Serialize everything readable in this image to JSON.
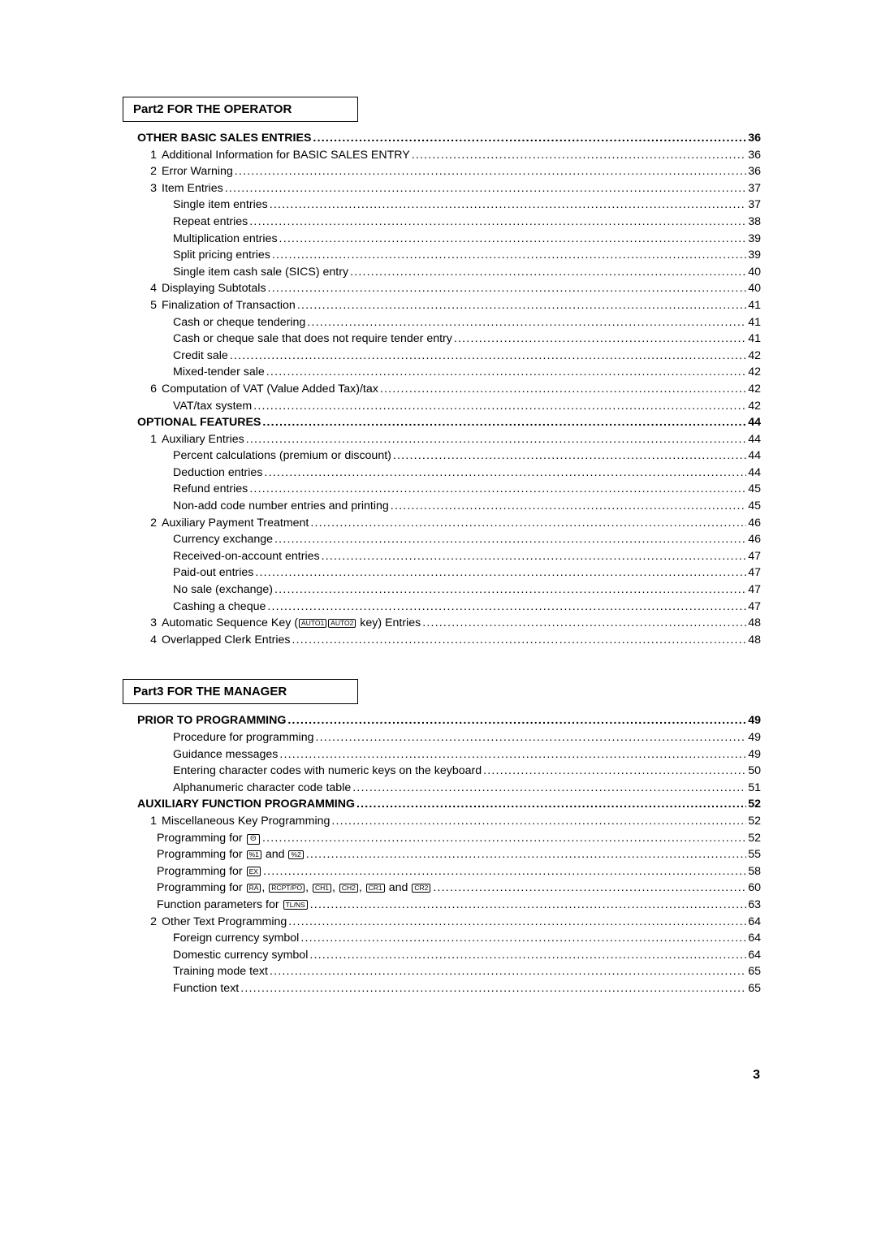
{
  "pageNumber": "3",
  "parts": [
    {
      "header": "Part2  FOR THE OPERATOR",
      "lines": [
        {
          "cls": "l0 bold",
          "num": "",
          "label": "OTHER BASIC SALES ENTRIES",
          "page": "36"
        },
        {
          "cls": "l1",
          "num": "1",
          "label": "Additional Information for BASIC SALES ENTRY",
          "page": "36"
        },
        {
          "cls": "l1",
          "num": "2",
          "label": "Error Warning",
          "page": "36"
        },
        {
          "cls": "l1",
          "num": "3",
          "label": "Item Entries",
          "page": "37"
        },
        {
          "cls": "l2",
          "num": "",
          "label": "Single item entries",
          "page": "37"
        },
        {
          "cls": "l2",
          "num": "",
          "label": "Repeat entries",
          "page": "38"
        },
        {
          "cls": "l2",
          "num": "",
          "label": "Multiplication entries",
          "page": "39"
        },
        {
          "cls": "l2",
          "num": "",
          "label": "Split pricing entries",
          "page": "39"
        },
        {
          "cls": "l2",
          "num": "",
          "label": "Single item cash sale (SICS) entry",
          "page": "40"
        },
        {
          "cls": "l1",
          "num": "4",
          "label": "Displaying Subtotals",
          "page": "40"
        },
        {
          "cls": "l1",
          "num": "5",
          "label": "Finalization of Transaction",
          "page": "41"
        },
        {
          "cls": "l2",
          "num": "",
          "label": "Cash or cheque tendering",
          "page": "41"
        },
        {
          "cls": "l2",
          "num": "",
          "label": "Cash or cheque sale that does not require tender entry",
          "page": "41"
        },
        {
          "cls": "l2",
          "num": "",
          "label": "Credit sale",
          "page": "42"
        },
        {
          "cls": "l2",
          "num": "",
          "label": "Mixed-tender sale",
          "page": "42"
        },
        {
          "cls": "l1",
          "num": "6",
          "label": "Computation of VAT (Value Added Tax)/tax",
          "page": "42"
        },
        {
          "cls": "l2",
          "num": "",
          "label": "VAT/tax system",
          "page": "42"
        },
        {
          "cls": "l0 bold",
          "num": "",
          "label": "OPTIONAL FEATURES",
          "page": "44"
        },
        {
          "cls": "l1",
          "num": "1",
          "label": "Auxiliary Entries",
          "page": "44"
        },
        {
          "cls": "l2",
          "num": "",
          "label": "Percent calculations (premium or discount)",
          "page": "44"
        },
        {
          "cls": "l2",
          "num": "",
          "label": "Deduction entries",
          "page": "44"
        },
        {
          "cls": "l2",
          "num": "",
          "label": "Refund entries",
          "page": "45"
        },
        {
          "cls": "l2",
          "num": "",
          "label": "Non-add code number entries and printing",
          "page": "45"
        },
        {
          "cls": "l1",
          "num": "2",
          "label": "Auxiliary Payment Treatment",
          "page": "46"
        },
        {
          "cls": "l2",
          "num": "",
          "label": "Currency exchange",
          "page": "46"
        },
        {
          "cls": "l2",
          "num": "",
          "label": "Received-on-account entries",
          "page": "47"
        },
        {
          "cls": "l2",
          "num": "",
          "label": "Paid-out entries",
          "page": "47"
        },
        {
          "cls": "l2",
          "num": "",
          "label": "No sale (exchange)",
          "page": "47"
        },
        {
          "cls": "l2",
          "num": "",
          "label": "Cashing a cheque",
          "page": "47"
        },
        {
          "cls": "l1",
          "num": "3",
          "label": "Automatic Sequence Key (|AUTO1||AUTO2| key) Entries",
          "page": "48"
        },
        {
          "cls": "l1",
          "num": "4",
          "label": "Overlapped Clerk Entries",
          "page": "48"
        }
      ]
    },
    {
      "header": "Part3  FOR THE MANAGER",
      "lines": [
        {
          "cls": "l0 bold",
          "num": "",
          "label": "PRIOR TO PROGRAMMING",
          "page": "49"
        },
        {
          "cls": "l2",
          "num": "",
          "label": "Procedure for programming",
          "page": "49"
        },
        {
          "cls": "l2",
          "num": "",
          "label": "Guidance messages",
          "page": "49"
        },
        {
          "cls": "l2",
          "num": "",
          "label": "Entering character codes with numeric keys on the keyboard",
          "page": "50"
        },
        {
          "cls": "l2",
          "num": "",
          "label": "Alphanumeric character code table",
          "page": "51"
        },
        {
          "cls": "l0 bold",
          "num": "",
          "label": "AUXILIARY FUNCTION PROGRAMMING",
          "page": "52"
        },
        {
          "cls": "l1",
          "num": "1",
          "label": "Miscellaneous Key Programming",
          "page": "52"
        },
        {
          "cls": "l2b",
          "num": "",
          "label": "Programming for |⊝|",
          "page": "52"
        },
        {
          "cls": "l2b",
          "num": "",
          "label": "Programming for |%1| and |%2|",
          "page": "55"
        },
        {
          "cls": "l2b",
          "num": "",
          "label": "Programming for |EX|",
          "page": "58"
        },
        {
          "cls": "l2b",
          "num": "",
          "label": "Programming for |RA|, |RCPT/PO|, |CH1|, |CH2|, |CR1| and |CR2|",
          "page": "60"
        },
        {
          "cls": "l2b",
          "num": "",
          "label": "Function parameters for |TL/NS|",
          "page": "63"
        },
        {
          "cls": "l1",
          "num": "2",
          "label": "Other Text Programming",
          "page": "64"
        },
        {
          "cls": "l2",
          "num": "",
          "label": "Foreign currency symbol",
          "page": "64"
        },
        {
          "cls": "l2",
          "num": "",
          "label": "Domestic currency symbol",
          "page": "64"
        },
        {
          "cls": "l2",
          "num": "",
          "label": "Training mode text",
          "page": "65"
        },
        {
          "cls": "l2",
          "num": "",
          "label": "Function text",
          "page": "65"
        }
      ]
    }
  ],
  "dotChar": ".",
  "colors": {
    "text": "#000000",
    "bg": "#ffffff"
  }
}
